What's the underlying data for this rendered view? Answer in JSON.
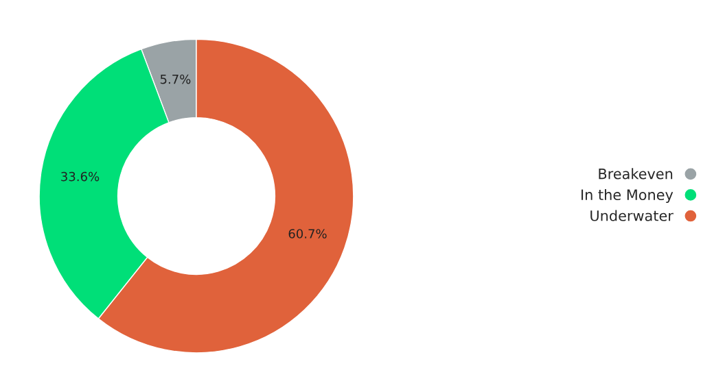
{
  "chart_data": {
    "type": "donut",
    "categories": [
      "Breakeven",
      "In the Money",
      "Underwater"
    ],
    "values": [
      5.7,
      33.6,
      60.7
    ],
    "colors": [
      "#9aa3a6",
      "#00df78",
      "#e0623b"
    ],
    "value_labels": [
      "5.7%",
      "33.6%",
      "60.7%"
    ],
    "legend": "right"
  }
}
